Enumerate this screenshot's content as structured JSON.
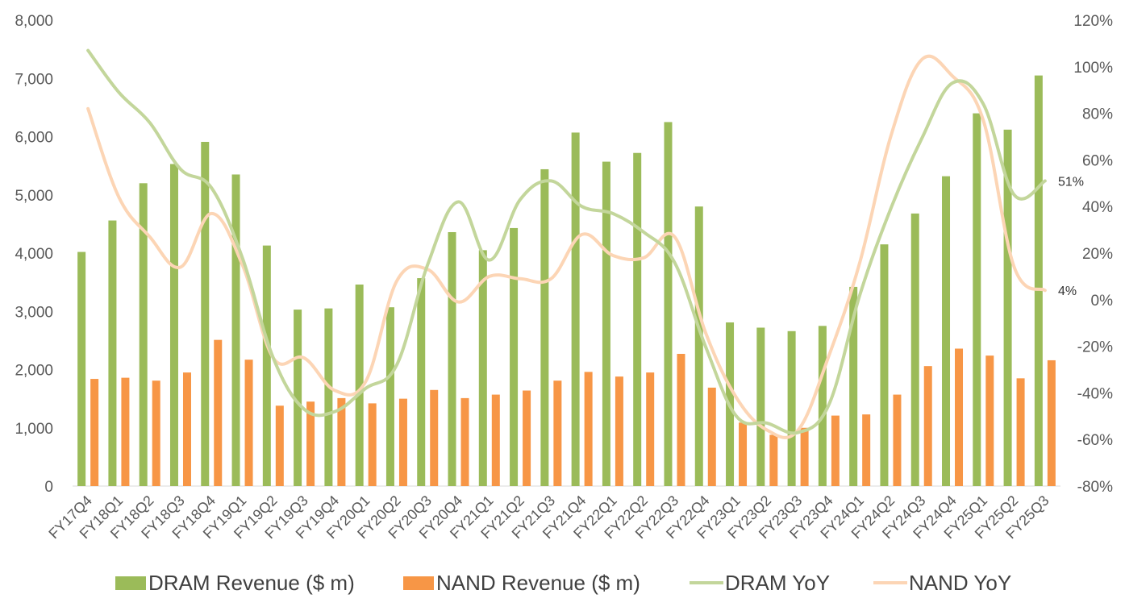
{
  "chart_data": {
    "type": "bar+line",
    "categories": [
      "FY17Q4",
      "FY18Q1",
      "FY18Q2",
      "FY18Q3",
      "FY18Q4",
      "FY19Q1",
      "FY19Q2",
      "FY19Q3",
      "FY19Q4",
      "FY20Q1",
      "FY20Q2",
      "FY20Q3",
      "FY20Q4",
      "FY21Q1",
      "FY21Q2",
      "FY21Q3",
      "FY21Q4",
      "FY22Q1",
      "FY22Q2",
      "FY22Q3",
      "FY22Q4",
      "FY23Q1",
      "FY23Q2",
      "FY23Q3",
      "FY23Q4",
      "FY24Q1",
      "FY24Q2",
      "FY24Q3",
      "FY24Q4",
      "FY25Q1",
      "FY25Q2",
      "FY25Q3"
    ],
    "series": [
      {
        "name": "DRAM Revenue ($ m)",
        "type": "bar",
        "axis": "left",
        "color": "#9bbb59",
        "values": [
          4020,
          4560,
          5200,
          5530,
          5910,
          5350,
          4130,
          3030,
          3050,
          3460,
          3070,
          3570,
          4360,
          4050,
          4430,
          5440,
          6070,
          5570,
          5720,
          6250,
          4800,
          2810,
          2720,
          2660,
          2750,
          3420,
          4150,
          4680,
          5320,
          6400,
          6120,
          7050
        ]
      },
      {
        "name": "NAND Revenue ($ m)",
        "type": "bar",
        "axis": "left",
        "color": "#f79646",
        "values": [
          1840,
          1860,
          1810,
          1950,
          2510,
          2170,
          1380,
          1450,
          1510,
          1420,
          1500,
          1650,
          1510,
          1570,
          1640,
          1810,
          1960,
          1880,
          1950,
          2270,
          1690,
          1090,
          880,
          1000,
          1210,
          1230,
          1570,
          2060,
          2360,
          2240,
          1850,
          2160
        ]
      },
      {
        "name": "DRAM YoY",
        "type": "line",
        "axis": "right",
        "color": "#c3d69b",
        "values": [
          107,
          89,
          76,
          56,
          48,
          18,
          -25,
          -47,
          -48,
          -38,
          -28,
          15,
          42,
          17,
          43,
          51,
          40,
          37,
          29,
          16,
          -20,
          -50,
          -53,
          -57,
          -45,
          2,
          39,
          69,
          93,
          84,
          45,
          51
        ]
      },
      {
        "name": "NAND YoY",
        "type": "line",
        "axis": "right",
        "color": "#fcd5b5",
        "values": [
          82,
          44,
          27,
          14,
          37,
          15,
          -25,
          -25,
          -39,
          -35,
          8,
          13,
          -1,
          10,
          9,
          9,
          28,
          19,
          18,
          27,
          -14,
          -42,
          -56,
          -56,
          -24,
          16,
          70,
          103,
          96,
          77,
          14,
          4
        ]
      }
    ],
    "y_left": {
      "min": 0,
      "max": 8000,
      "ticks": [
        "0",
        "1,000",
        "2,000",
        "3,000",
        "4,000",
        "5,000",
        "6,000",
        "7,000",
        "8,000"
      ]
    },
    "y_right": {
      "min": -80,
      "max": 120,
      "ticks": [
        "-80%",
        "-60%",
        "-40%",
        "-20%",
        "0%",
        "20%",
        "40%",
        "60%",
        "80%",
        "100%",
        "120%"
      ]
    },
    "end_labels": {
      "dram_yoy": "51%",
      "nand_yoy": "4%"
    },
    "legend_position": "bottom",
    "grid": false
  }
}
